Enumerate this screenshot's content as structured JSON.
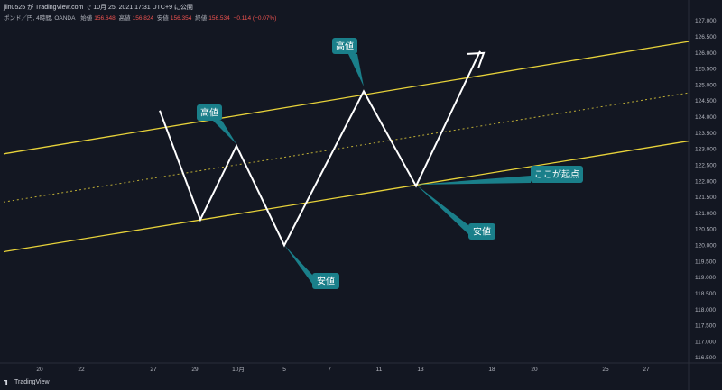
{
  "header": {
    "publish_line": "jiin0525 が TradingView.com で 10月 25, 2021 17:31 UTC+9 に公開",
    "symbol": "ポンド／円, 4時間, OANDA",
    "ohlc": [
      {
        "label": "始値",
        "value": "156.648"
      },
      {
        "label": "高値",
        "value": "156.824"
      },
      {
        "label": "安値",
        "value": "156.354"
      },
      {
        "label": "終値",
        "value": "156.534"
      },
      {
        "label": "",
        "value": "−0.114 (−0.07%)"
      }
    ]
  },
  "footer": {
    "brand": "TradingView"
  },
  "chart_data": {
    "type": "line",
    "y_axis": {
      "range": [
        116.2,
        127.2
      ],
      "ticks": [
        "127.000",
        "126.500",
        "126.000",
        "125.500",
        "125.000",
        "124.500",
        "124.000",
        "123.500",
        "123.000",
        "122.500",
        "122.000",
        "121.500",
        "121.000",
        "120.500",
        "120.000",
        "119.500",
        "119.000",
        "118.500",
        "118.000",
        "117.500",
        "117.000",
        "116.500"
      ]
    },
    "x_axis": {
      "ticks": [
        "20",
        "22",
        "27",
        "29",
        "10月",
        "5",
        "7",
        "11",
        "13",
        "18",
        "20",
        "25",
        "27"
      ]
    },
    "channel": {
      "upper": {
        "start": 122.85,
        "end": 126.35
      },
      "middle_dotted": {
        "start": 121.35,
        "end": 124.75
      },
      "lower": {
        "start": 119.8,
        "end": 123.25
      }
    },
    "drawn_path": [
      124.2,
      120.8,
      123.1,
      120.0,
      124.8,
      121.85,
      126.05
    ],
    "annotations": [
      {
        "text": "高値"
      },
      {
        "text": "高値"
      },
      {
        "text": "安値"
      },
      {
        "text": "安値"
      },
      {
        "text": "ここが起点"
      }
    ],
    "colors": {
      "background": "#131722",
      "channel": "#e8d33a",
      "path": "#ffffff",
      "callout": "#1a7f8a",
      "grid": "#2a2e39"
    }
  }
}
